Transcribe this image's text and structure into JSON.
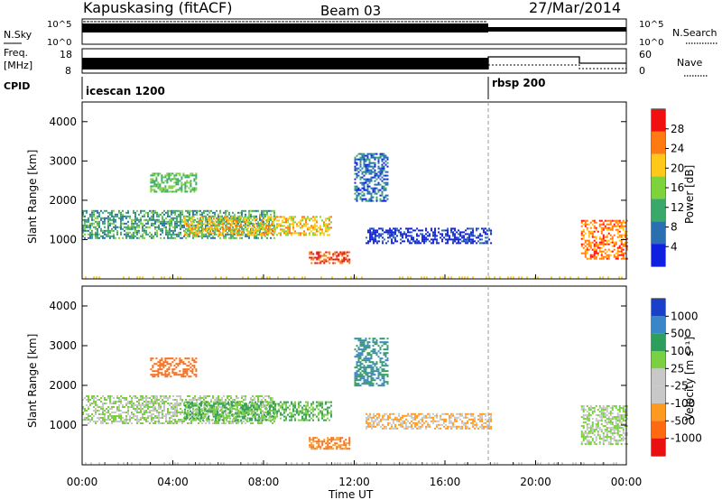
{
  "header": {
    "station": "Kapuskasing (fitACF)",
    "beam": "Beam 03",
    "date": "27/Mar/2014"
  },
  "noise_panel": {
    "left_label": "N.Sky",
    "right_label": "N.Search",
    "left_ticks": [
      "10^5",
      "10^0"
    ],
    "right_ticks": [
      "10^5",
      "10^0"
    ]
  },
  "freq_panel": {
    "left_label_top": "Freq.",
    "left_label_unit": "[MHz]",
    "right_label": "Nave",
    "left_ticks": [
      "18",
      "8"
    ],
    "right_ticks": [
      "60",
      "0"
    ]
  },
  "cpid": {
    "label": "CPID",
    "modes": [
      {
        "name": "icescan 1200",
        "start_hour": 0
      },
      {
        "name": "rbsp 200",
        "start_hour": 18
      }
    ]
  },
  "x_axis": {
    "label": "Time UT",
    "ticks": [
      "00:00",
      "04:00",
      "08:00",
      "12:00",
      "16:00",
      "20:00",
      "00:00"
    ]
  },
  "power_panel": {
    "ylabel": "Slant Range [km]",
    "yticks": [
      "1000",
      "2000",
      "3000",
      "4000"
    ],
    "colorbar_label": "Power [dB]",
    "colorbar_ticks": [
      "28",
      "24",
      "20",
      "16",
      "12",
      "8",
      "4"
    ],
    "colors": [
      "#f01010",
      "#ff7a10",
      "#ffc81a",
      "#7ed23c",
      "#3aa86a",
      "#2a70b0",
      "#1020e0"
    ]
  },
  "velocity_panel": {
    "ylabel": "Slant Range [km]",
    "yticks": [
      "1000",
      "2000",
      "3000",
      "4000"
    ],
    "colorbar_label": "Velocity [m s⁻¹]",
    "colorbar_ticks": [
      "1000",
      "500",
      "100",
      "25",
      "-25",
      "-100",
      "-500",
      "-1000"
    ],
    "colors": [
      "#1a3fc8",
      "#3a86c8",
      "#2d9f5a",
      "#7bd042",
      "#c8c8c8",
      "#c8c8c8",
      "#ff9a20",
      "#ff6a10",
      "#e81010"
    ]
  },
  "chart_data": {
    "type": "heatmap",
    "x_range_hours": [
      0,
      24
    ],
    "y_range_km": [
      0,
      4500
    ],
    "mode_change_hour": 18,
    "echo_regions": [
      {
        "t0": 0.0,
        "t1": 8.5,
        "r0": 1050,
        "r1": 1750,
        "power_db": 12,
        "velocity": 25
      },
      {
        "t0": 4.5,
        "t1": 11.0,
        "r0": 1100,
        "r1": 1600,
        "power_db": 20,
        "velocity": 100
      },
      {
        "t0": 3.0,
        "t1": 5.0,
        "r0": 2200,
        "r1": 2700,
        "power_db": 14,
        "velocity": -300
      },
      {
        "t0": 10.0,
        "t1": 11.8,
        "r0": 400,
        "r1": 700,
        "power_db": 26,
        "velocity": -100
      },
      {
        "t0": 12.0,
        "t1": 13.5,
        "r0": 2000,
        "r1": 3200,
        "power_db": 8,
        "velocity": 500
      },
      {
        "t0": 12.5,
        "t1": 18.0,
        "r0": 900,
        "r1": 1300,
        "power_db": 4,
        "velocity": -25
      },
      {
        "t0": 22.0,
        "t1": 24.0,
        "r0": 500,
        "r1": 1500,
        "power_db": 24,
        "velocity": 25
      }
    ]
  }
}
